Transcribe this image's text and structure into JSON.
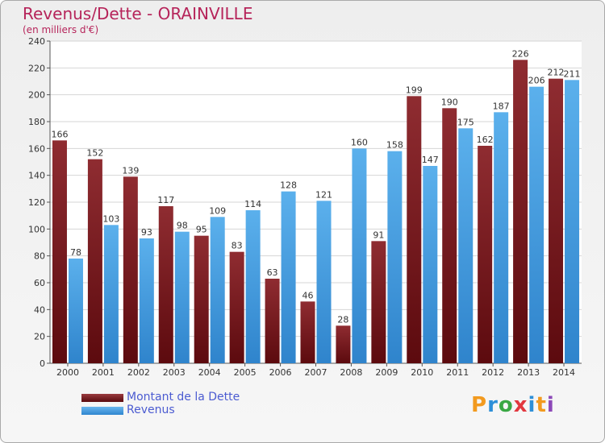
{
  "header": {
    "title": "Revenus/Dette - ORAINVILLE",
    "subtitle": "(en milliers d'€)"
  },
  "legend": {
    "items": [
      {
        "label": "Montant de la Dette",
        "color": "#7a1a1e"
      },
      {
        "label": "Revenus",
        "color": "#4aa0e0"
      }
    ]
  },
  "logo": {
    "text": "Proxiti",
    "colors": [
      "#f29a1f",
      "#2d8fd8",
      "#3aa844",
      "#e2383f",
      "#2d8fd8",
      "#f29a1f",
      "#8c48b8"
    ]
  },
  "chart_data": {
    "type": "bar",
    "categories": [
      "2000",
      "2001",
      "2002",
      "2003",
      "2004",
      "2005",
      "2006",
      "2007",
      "2008",
      "2009",
      "2010",
      "2011",
      "2012",
      "2013",
      "2014"
    ],
    "series": [
      {
        "name": "Montant de la Dette",
        "color": "#7a1a1e",
        "values": [
          166,
          152,
          139,
          117,
          95,
          83,
          63,
          46,
          28,
          91,
          199,
          190,
          162,
          226,
          212
        ]
      },
      {
        "name": "Revenus",
        "color": "#4aa0e0",
        "values": [
          78,
          103,
          93,
          98,
          109,
          114,
          128,
          121,
          160,
          158,
          147,
          175,
          187,
          206,
          211
        ]
      }
    ],
    "ylim": [
      0,
      240
    ],
    "yticks": [
      0,
      20,
      40,
      60,
      80,
      100,
      120,
      140,
      160,
      180,
      200,
      220,
      240
    ],
    "grid": true,
    "legend_position": "bottom-left"
  }
}
